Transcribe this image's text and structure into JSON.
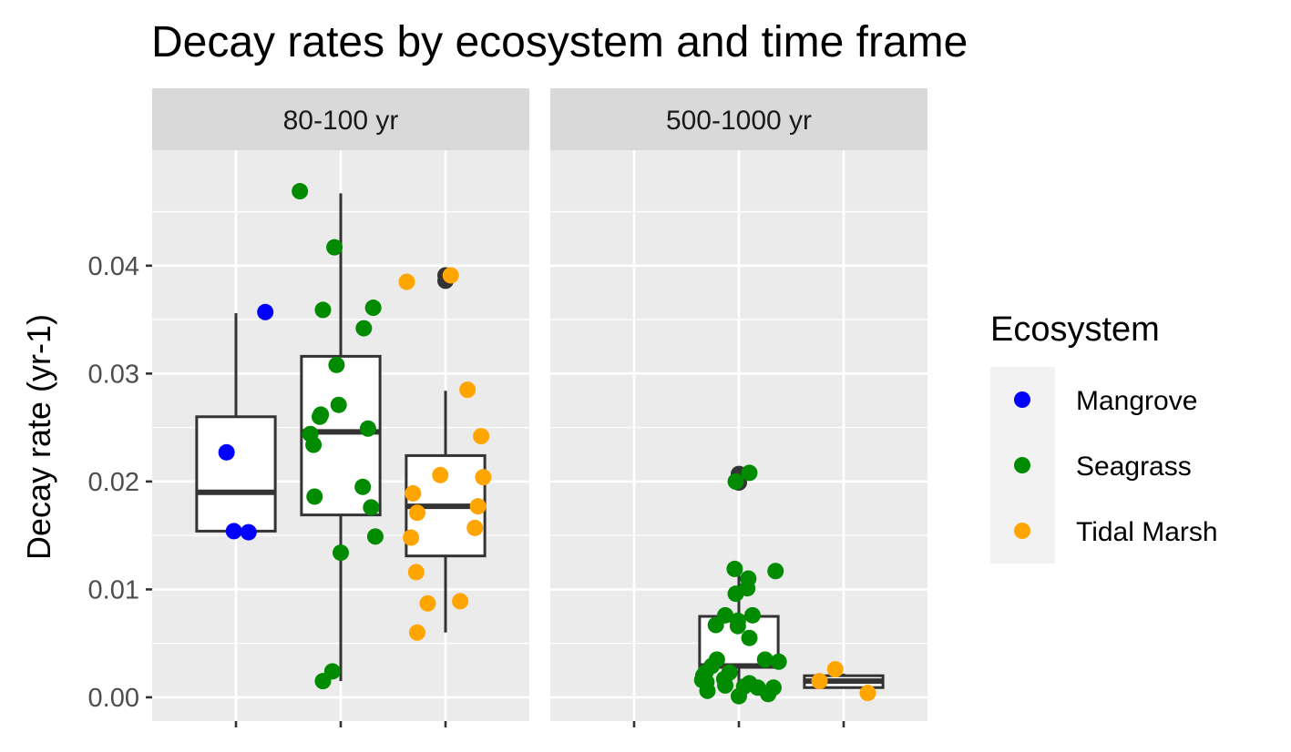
{
  "chart_data": {
    "type": "boxplot",
    "title": "Decay rates by ecosystem and time frame",
    "xlabel": "",
    "ylabel": "Decay rate (yr-1)",
    "ylim": [
      -0.0022,
      0.0507
    ],
    "y_ticks": [
      0.0,
      0.01,
      0.02,
      0.03,
      0.04
    ],
    "y_tick_labels": [
      "0.00",
      "0.01",
      "0.02",
      "0.03",
      "0.04"
    ],
    "categories": [
      "Mangrove",
      "Seagrass",
      "Tidal Marsh"
    ],
    "x_tick_labels_visible": false,
    "grid": true,
    "legend": {
      "title": "Ecosystem",
      "position": "right",
      "entries": [
        {
          "name": "Mangrove",
          "color": "#0000ff"
        },
        {
          "name": "Seagrass",
          "color": "#008b00"
        },
        {
          "name": "Tidal Marsh",
          "color": "#ffa500"
        }
      ]
    },
    "colors": {
      "panel_bg": "#ebebeb",
      "strip_bg": "#d9d9d9",
      "grid": "#ffffff",
      "box": "#333333",
      "outlier": "#333333"
    },
    "facets": [
      {
        "label": "80-100 yr",
        "boxes": [
          {
            "category": "Mangrove",
            "min": 0.0153,
            "q1": 0.0154,
            "median": 0.019,
            "q3": 0.026,
            "max": 0.0356,
            "outliers": []
          },
          {
            "category": "Seagrass",
            "min": 0.0015,
            "q1": 0.0169,
            "median": 0.0246,
            "q3": 0.0316,
            "max": 0.0467,
            "outliers": []
          },
          {
            "category": "Tidal Marsh",
            "min": 0.006,
            "q1": 0.0131,
            "median": 0.0177,
            "q3": 0.0224,
            "max": 0.0284,
            "outliers": [
              0.0391,
              0.0386
            ]
          }
        ],
        "points": [
          {
            "category": "Mangrove",
            "jitter": 0.28,
            "y": 0.0357
          },
          {
            "category": "Mangrove",
            "jitter": -0.09,
            "y": 0.0227
          },
          {
            "category": "Mangrove",
            "jitter": -0.02,
            "y": 0.0154
          },
          {
            "category": "Mangrove",
            "jitter": 0.12,
            "y": 0.0153
          },
          {
            "category": "Seagrass",
            "jitter": -0.39,
            "y": 0.0469
          },
          {
            "category": "Seagrass",
            "jitter": -0.06,
            "y": 0.0417
          },
          {
            "category": "Seagrass",
            "jitter": 0.31,
            "y": 0.0361
          },
          {
            "category": "Seagrass",
            "jitter": -0.17,
            "y": 0.0359
          },
          {
            "category": "Seagrass",
            "jitter": 0.22,
            "y": 0.0342
          },
          {
            "category": "Seagrass",
            "jitter": -0.04,
            "y": 0.0308
          },
          {
            "category": "Seagrass",
            "jitter": -0.02,
            "y": 0.0271
          },
          {
            "category": "Seagrass",
            "jitter": -0.19,
            "y": 0.0262
          },
          {
            "category": "Seagrass",
            "jitter": -0.2,
            "y": 0.026
          },
          {
            "category": "Seagrass",
            "jitter": 0.26,
            "y": 0.0249
          },
          {
            "category": "Seagrass",
            "jitter": -0.29,
            "y": 0.0244
          },
          {
            "category": "Seagrass",
            "jitter": -0.26,
            "y": 0.0234
          },
          {
            "category": "Seagrass",
            "jitter": 0.21,
            "y": 0.0195
          },
          {
            "category": "Seagrass",
            "jitter": -0.25,
            "y": 0.0186
          },
          {
            "category": "Seagrass",
            "jitter": 0.29,
            "y": 0.0176
          },
          {
            "category": "Seagrass",
            "jitter": 0.33,
            "y": 0.0149
          },
          {
            "category": "Seagrass",
            "jitter": 0.0,
            "y": 0.0134
          },
          {
            "category": "Seagrass",
            "jitter": -0.08,
            "y": 0.0024
          },
          {
            "category": "Seagrass",
            "jitter": -0.17,
            "y": 0.0015
          },
          {
            "category": "Tidal Marsh",
            "jitter": -0.37,
            "y": 0.0385
          },
          {
            "category": "Tidal Marsh",
            "jitter": 0.05,
            "y": 0.0391
          },
          {
            "category": "Tidal Marsh",
            "jitter": 0.21,
            "y": 0.0285
          },
          {
            "category": "Tidal Marsh",
            "jitter": 0.34,
            "y": 0.0242
          },
          {
            "category": "Tidal Marsh",
            "jitter": -0.05,
            "y": 0.0206
          },
          {
            "category": "Tidal Marsh",
            "jitter": 0.36,
            "y": 0.0204
          },
          {
            "category": "Tidal Marsh",
            "jitter": -0.31,
            "y": 0.0189
          },
          {
            "category": "Tidal Marsh",
            "jitter": 0.31,
            "y": 0.0177
          },
          {
            "category": "Tidal Marsh",
            "jitter": -0.27,
            "y": 0.0171
          },
          {
            "category": "Tidal Marsh",
            "jitter": 0.28,
            "y": 0.0157
          },
          {
            "category": "Tidal Marsh",
            "jitter": -0.33,
            "y": 0.0148
          },
          {
            "category": "Tidal Marsh",
            "jitter": -0.28,
            "y": 0.0116
          },
          {
            "category": "Tidal Marsh",
            "jitter": 0.14,
            "y": 0.0089
          },
          {
            "category": "Tidal Marsh",
            "jitter": -0.17,
            "y": 0.0087
          },
          {
            "category": "Tidal Marsh",
            "jitter": -0.27,
            "y": 0.006
          }
        ]
      },
      {
        "label": "500-1000 yr",
        "boxes": [
          {
            "category": "Mangrove",
            "min": null,
            "q1": null,
            "median": null,
            "q3": null,
            "max": null,
            "outliers": []
          },
          {
            "category": "Seagrass",
            "min": 0.0001,
            "q1": 0.0028,
            "median": 0.0029,
            "q3": 0.0075,
            "max": 0.0119,
            "outliers": [
              0.0207,
              0.0199
            ]
          },
          {
            "category": "Tidal Marsh",
            "min": 0.0008,
            "q1": 0.0009,
            "median": 0.0015,
            "q3": 0.002,
            "max": 0.0022,
            "outliers": []
          }
        ],
        "points": [
          {
            "category": "Seagrass",
            "jitter": 0.1,
            "y": 0.0208
          },
          {
            "category": "Seagrass",
            "jitter": -0.03,
            "y": 0.02
          },
          {
            "category": "Seagrass",
            "jitter": -0.04,
            "y": 0.0119
          },
          {
            "category": "Seagrass",
            "jitter": 0.35,
            "y": 0.0117
          },
          {
            "category": "Seagrass",
            "jitter": 0.09,
            "y": 0.011
          },
          {
            "category": "Seagrass",
            "jitter": 0.08,
            "y": 0.0101
          },
          {
            "category": "Seagrass",
            "jitter": -0.03,
            "y": 0.0096
          },
          {
            "category": "Seagrass",
            "jitter": -0.13,
            "y": 0.0076
          },
          {
            "category": "Seagrass",
            "jitter": 0.13,
            "y": 0.0076
          },
          {
            "category": "Seagrass",
            "jitter": -0.01,
            "y": 0.0071
          },
          {
            "category": "Seagrass",
            "jitter": -0.22,
            "y": 0.0067
          },
          {
            "category": "Seagrass",
            "jitter": -0.01,
            "y": 0.0066
          },
          {
            "category": "Seagrass",
            "jitter": 0.1,
            "y": 0.0055
          },
          {
            "category": "Seagrass",
            "jitter": 0.25,
            "y": 0.0035
          },
          {
            "category": "Seagrass",
            "jitter": -0.21,
            "y": 0.0035
          },
          {
            "category": "Seagrass",
            "jitter": 0.38,
            "y": 0.0033
          },
          {
            "category": "Seagrass",
            "jitter": -0.26,
            "y": 0.0029
          },
          {
            "category": "Seagrass",
            "jitter": -0.32,
            "y": 0.0023
          },
          {
            "category": "Seagrass",
            "jitter": -0.09,
            "y": 0.0023
          },
          {
            "category": "Seagrass",
            "jitter": -0.34,
            "y": 0.002
          },
          {
            "category": "Seagrass",
            "jitter": -0.14,
            "y": 0.0017
          },
          {
            "category": "Seagrass",
            "jitter": -0.35,
            "y": 0.0016
          },
          {
            "category": "Seagrass",
            "jitter": -0.31,
            "y": 0.0014
          },
          {
            "category": "Seagrass",
            "jitter": 0.1,
            "y": 0.0013
          },
          {
            "category": "Seagrass",
            "jitter": -0.13,
            "y": 0.0011
          },
          {
            "category": "Seagrass",
            "jitter": 0.05,
            "y": 0.001
          },
          {
            "category": "Seagrass",
            "jitter": 0.18,
            "y": 0.0009
          },
          {
            "category": "Seagrass",
            "jitter": 0.33,
            "y": 0.0009
          },
          {
            "category": "Seagrass",
            "jitter": -0.3,
            "y": 0.0006
          },
          {
            "category": "Seagrass",
            "jitter": 0.28,
            "y": 0.0003
          },
          {
            "category": "Seagrass",
            "jitter": 0.0,
            "y": 0.0001
          },
          {
            "category": "Tidal Marsh",
            "jitter": -0.23,
            "y": 0.0015
          },
          {
            "category": "Tidal Marsh",
            "jitter": -0.08,
            "y": 0.0026
          },
          {
            "category": "Tidal Marsh",
            "jitter": 0.23,
            "y": 0.0004
          }
        ]
      }
    ]
  }
}
